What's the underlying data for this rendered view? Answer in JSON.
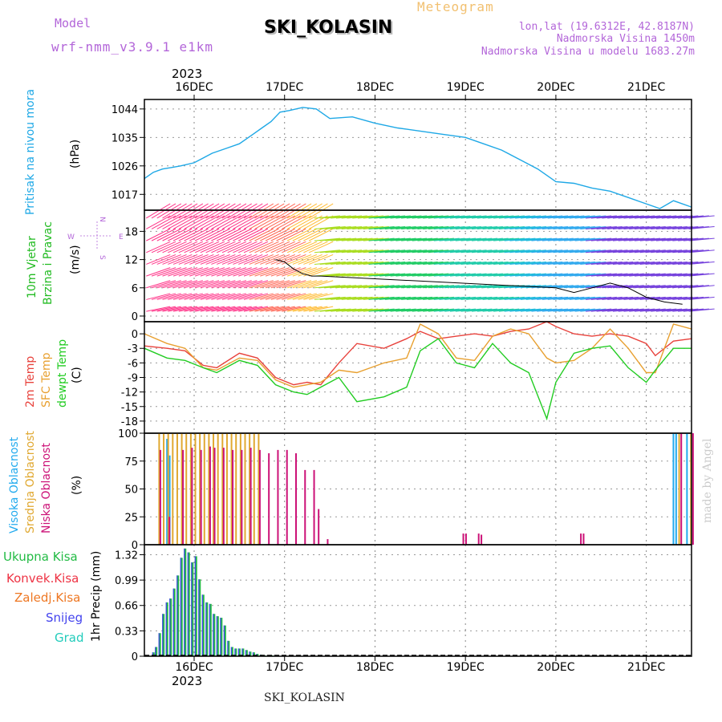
{
  "header": {
    "model_label": "Model",
    "model_name": "wrf-nmm_v3.9.1 e1km",
    "title": "SKI_KOLASIN",
    "product": "Meteogram",
    "lonlat": "lon,lat (19.6312E, 42.8187N)",
    "elevation": "Nadmorska Visina 1450m",
    "model_elevation": "Nadmorska Visina u modelu 1683.27m",
    "footer_station": "SKI_KOLASIN",
    "credit": "made by Angel"
  },
  "time_axis": {
    "year": "2023",
    "day_labels": [
      "16DEC",
      "17DEC",
      "18DEC",
      "19DEC",
      "20DEC",
      "21DEC"
    ],
    "range_days": [
      -0.55,
      5.5
    ]
  },
  "panel_labels": {
    "pressure": [
      "Pritisak na nivou mora"
    ],
    "pressure_unit": "(hPa)",
    "wind": [
      "10m Vjetar",
      "Brzina i Pravac"
    ],
    "wind_unit": "(m/s)",
    "wind_compass": {
      "n": "N",
      "s": "S",
      "e": "E",
      "w": "W"
    },
    "temp": [
      "2m Temp",
      "SFC Temp",
      "dewpt Temp"
    ],
    "temp_unit": "(C)",
    "cloud": [
      "Visoka Oblacnost",
      "Srednja Oblacnost",
      "Niska Oblacnost"
    ],
    "cloud_unit": "(%)",
    "precip_legend": [
      "Ukupna Kisa",
      "Konvek.Kisa",
      "Zaledj.Kisa",
      "Snijeg",
      "Grad"
    ],
    "precip_unit": "1hr Precip (mm)"
  },
  "colors": {
    "pressure": "#1ea8e6",
    "temp2m": "#e8423c",
    "sfc": "#e8a030",
    "dew": "#22cc22",
    "cloud_high": "#22aaee",
    "cloud_mid": "#e0a830",
    "cloud_low": "#cc1177",
    "precip_total": "#22bb44",
    "precip_conv": "#ee3344",
    "precip_frz": "#ee7722",
    "precip_snow": "#4444ee",
    "precip_hail": "#22ccbb",
    "title_purple": "#b366d9",
    "meteogram_orange": "#f2c070"
  },
  "chart_data": [
    {
      "type": "line",
      "ylabel": "(hPa)",
      "yticks": [
        1017,
        1026,
        1035,
        1044
      ],
      "ylim": [
        1012,
        1047
      ],
      "x": [
        -0.55,
        -0.45,
        -0.35,
        -0.25,
        -0.15,
        0,
        0.2,
        0.35,
        0.5,
        0.65,
        0.75,
        0.85,
        0.95,
        1.05,
        1.2,
        1.35,
        1.5,
        1.75,
        2,
        2.25,
        2.5,
        2.75,
        3,
        3.2,
        3.4,
        3.6,
        3.8,
        4,
        4.2,
        4.4,
        4.6,
        4.8,
        5,
        5.15,
        5.3,
        5.5
      ],
      "series": [
        {
          "values": [
            1022,
            1024,
            1025,
            1025.5,
            1026,
            1027,
            1030,
            1031.5,
            1033,
            1036,
            1038,
            1040,
            1043,
            1043.5,
            1044.5,
            1044,
            1041,
            1041.5,
            1039.5,
            1038,
            1037,
            1036,
            1035,
            1033,
            1031,
            1028,
            1025,
            1021,
            1020.5,
            1019,
            1018,
            1016,
            1014,
            1012.5,
            1015,
            1013
          ]
        }
      ]
    },
    {
      "type": "line",
      "ylabel": "(m/s)",
      "yticks": [
        0,
        6,
        12,
        18
      ],
      "ylim": [
        -1.2,
        22.5
      ],
      "description_series": "gust/wind speed line",
      "x": [
        0.9,
        1,
        1.1,
        1.2,
        1.3,
        1.4,
        4.0,
        4.2,
        4.4,
        4.5,
        4.6,
        4.8,
        5.0,
        5.2,
        5.4
      ],
      "series": [
        {
          "values": [
            12,
            11.5,
            10,
            9,
            8.5,
            8.5,
            6,
            5,
            6,
            6.5,
            7,
            6,
            4,
            3,
            2.5
          ]
        }
      ]
    },
    {
      "type": "line",
      "ylabel": "(C)",
      "yticks": [
        0,
        -3,
        -6,
        -9,
        -12,
        -15,
        -18
      ],
      "ylim": [
        -20.5,
        2.5
      ],
      "x": [
        -0.55,
        -0.3,
        -0.1,
        0.1,
        0.25,
        0.5,
        0.7,
        0.9,
        1.1,
        1.25,
        1.4,
        1.6,
        1.8,
        2.1,
        2.35,
        2.5,
        2.7,
        2.9,
        3.1,
        3.3,
        3.5,
        3.7,
        3.9,
        4.0,
        4.2,
        4.4,
        4.6,
        4.8,
        5.0,
        5.1,
        5.3,
        5.5
      ],
      "series": [
        {
          "name": "2m Temp",
          "values": [
            -2.5,
            -3,
            -3.5,
            -6.5,
            -7,
            -4,
            -5,
            -9,
            -10.5,
            -10,
            -10.5,
            -6,
            -2,
            -3,
            -1,
            0.5,
            -1,
            -0.5,
            0,
            -0.5,
            0.5,
            1,
            2.5,
            1.5,
            0,
            -0.5,
            0,
            -0.5,
            -2,
            -4.5,
            -1.5,
            -1
          ]
        },
        {
          "name": "SFC Temp",
          "values": [
            0,
            -2,
            -3,
            -7,
            -7.5,
            -5,
            -5.5,
            -9.5,
            -11,
            -10.5,
            -10,
            -7.5,
            -8,
            -6,
            -5,
            2,
            0,
            -5,
            -5.5,
            -0.5,
            1,
            0,
            -5,
            -6,
            -5.5,
            -3,
            1,
            -3,
            -8,
            -8,
            2,
            1
          ]
        },
        {
          "name": "dewpt Temp",
          "values": [
            -3,
            -5,
            -5.5,
            -7,
            -8,
            -5.5,
            -6.5,
            -10.5,
            -12,
            -12.5,
            -11,
            -9,
            -14,
            -13,
            -11,
            -3.5,
            -1,
            -6,
            -7,
            -2,
            -6,
            -8,
            -17.5,
            -10,
            -4,
            -3,
            -2.5,
            -7,
            -10,
            -7.5,
            -3,
            -3
          ]
        }
      ]
    },
    {
      "type": "bar",
      "ylabel": "(%)",
      "yticks": [
        0,
        25,
        50,
        75,
        100
      ],
      "ylim": [
        0,
        100
      ],
      "series": [
        {
          "name": "Visoka Oblacnost",
          "x": [
            -0.3,
            -0.27,
            5.3,
            5.33,
            5.45
          ],
          "values": [
            95,
            80,
            100,
            100,
            100
          ]
        },
        {
          "name": "Srednja Oblacnost",
          "x": [
            -0.4,
            -0.35,
            -0.3,
            -0.25,
            -0.2,
            -0.15,
            -0.1,
            -0.05,
            0,
            0.05,
            0.1,
            0.15,
            0.2,
            0.25,
            0.3,
            0.35,
            0.4,
            0.45,
            0.5,
            0.55,
            0.6,
            0.65,
            0.7,
            5.35,
            5.48
          ],
          "values": [
            100,
            100,
            100,
            100,
            100,
            100,
            100,
            100,
            100,
            100,
            100,
            100,
            100,
            100,
            100,
            100,
            100,
            100,
            100,
            100,
            100,
            100,
            100,
            100,
            100
          ]
        },
        {
          "name": "Niska Oblacnost",
          "x": [
            -0.4,
            -0.3,
            -0.15,
            -0.05,
            0.05,
            0.15,
            0.2,
            0.3,
            0.4,
            0.5,
            0.6,
            0.7,
            0.8,
            0.9,
            1,
            1.1,
            1.2,
            1.3,
            1.35,
            1.45,
            2.95,
            2.98,
            3.12,
            3.15,
            4.25,
            4.28,
            5.36,
            5.49
          ],
          "values": [
            85,
            25,
            85,
            87,
            85,
            88,
            87,
            87,
            85,
            85,
            87,
            85,
            82,
            85,
            85,
            82,
            67,
            67,
            32,
            5,
            10,
            10,
            10,
            9,
            10,
            10,
            100,
            100
          ]
        }
      ]
    },
    {
      "type": "bar",
      "ylabel": "1hr Precip (mm)",
      "yticks": [
        0,
        0.33,
        0.66,
        0.99,
        1.32
      ],
      "ylim": [
        0,
        1.45
      ],
      "x": [
        -0.45,
        -0.42,
        -0.38,
        -0.34,
        -0.3,
        -0.26,
        -0.22,
        -0.18,
        -0.14,
        -0.1,
        -0.06,
        -0.02,
        0.02,
        0.06,
        0.1,
        0.14,
        0.18,
        0.22,
        0.26,
        0.3,
        0.34,
        0.38,
        0.42,
        0.46,
        0.5,
        0.54,
        0.58,
        0.62,
        0.66,
        0.7,
        0.74,
        0.78,
        0.82,
        0.86,
        0.9
      ],
      "series": [
        {
          "name": "Ukupna Kisa",
          "values": [
            0.05,
            0.12,
            0.3,
            0.55,
            0.7,
            0.75,
            0.88,
            1.05,
            1.28,
            1.4,
            1.35,
            1.22,
            1.3,
            1.0,
            0.8,
            0.7,
            0.68,
            0.55,
            0.52,
            0.5,
            0.4,
            0.2,
            0.12,
            0.1,
            0.1,
            0.1,
            0.08,
            0.06,
            0.05,
            0.03,
            0.02,
            0.01,
            0.01,
            0.01,
            0.01
          ]
        }
      ]
    }
  ]
}
